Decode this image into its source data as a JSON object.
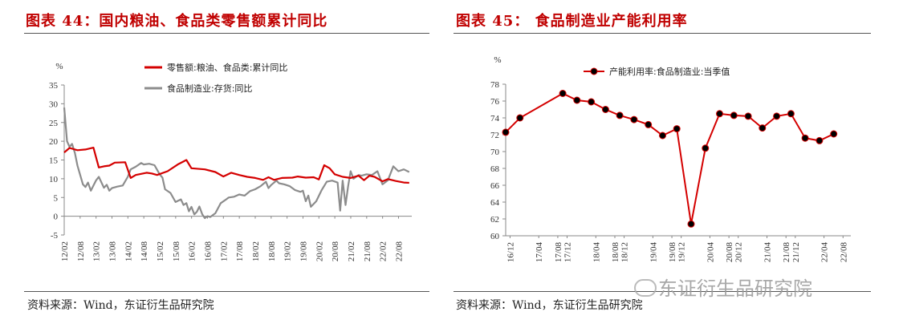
{
  "panel_left": {
    "title": "图表 44：国内粮油、食品类零售额累计同比",
    "source": "资料来源：Wind，东证衍生品研究院"
  },
  "panel_right": {
    "title": "图表 45：  食品制造业产能利用率",
    "source": "资料来源：Wind，东证衍生品研究院"
  },
  "watermark": "东证衍生品研究院",
  "chart_data": [
    {
      "type": "line",
      "title": "国内粮油、食品类零售额累计同比",
      "ylabel": "%",
      "ylim": [
        -5,
        35
      ],
      "yticks": [
        -5,
        0,
        5,
        10,
        15,
        20,
        25,
        30,
        35
      ],
      "xlim": [
        2012.083,
        2023.0
      ],
      "xticks": [
        "12/02",
        "12/08",
        "13/02",
        "13/08",
        "14/02",
        "14/08",
        "15/02",
        "15/08",
        "16/02",
        "16/08",
        "17/02",
        "17/08",
        "18/02",
        "18/08",
        "19/02",
        "19/08",
        "20/02",
        "20/08",
        "21/02",
        "21/08",
        "22/02",
        "22/08"
      ],
      "legend_position": "top-right",
      "series": [
        {
          "name": "零售额:粮油、食品类:累计同比",
          "color": "#d40000",
          "points": [
            [
              2012.083,
              17
            ],
            [
              2012.25,
              18.2
            ],
            [
              2012.5,
              17.6
            ],
            [
              2012.75,
              17.8
            ],
            [
              2013.0,
              18.3
            ],
            [
              2013.17,
              13
            ],
            [
              2013.33,
              13.3
            ],
            [
              2013.5,
              13.5
            ],
            [
              2013.67,
              14.3
            ],
            [
              2014.0,
              14.4
            ],
            [
              2014.17,
              10.2
            ],
            [
              2014.33,
              11
            ],
            [
              2014.67,
              11.6
            ],
            [
              2014.83,
              11.4
            ],
            [
              2015.0,
              11
            ],
            [
              2015.33,
              12
            ],
            [
              2015.67,
              13.9
            ],
            [
              2015.92,
              15
            ],
            [
              2016.08,
              12.8
            ],
            [
              2016.5,
              12.5
            ],
            [
              2016.83,
              11.8
            ],
            [
              2017.08,
              10.6
            ],
            [
              2017.33,
              11.6
            ],
            [
              2017.58,
              11
            ],
            [
              2017.83,
              10.5
            ],
            [
              2018.08,
              10.2
            ],
            [
              2018.33,
              9.7
            ],
            [
              2018.5,
              10.4
            ],
            [
              2018.67,
              9.7
            ],
            [
              2018.92,
              10.2
            ],
            [
              2019.25,
              10.3
            ],
            [
              2019.42,
              10.6
            ],
            [
              2019.67,
              10.3
            ],
            [
              2019.92,
              10.4
            ],
            [
              2020.08,
              9.8
            ],
            [
              2020.25,
              13.6
            ],
            [
              2020.42,
              12.8
            ],
            [
              2020.58,
              11.2
            ],
            [
              2020.83,
              10.5
            ],
            [
              2021.08,
              10.2
            ],
            [
              2021.33,
              10.8
            ],
            [
              2021.5,
              9.6
            ],
            [
              2021.67,
              10.8
            ],
            [
              2021.83,
              10.5
            ],
            [
              2022.08,
              9.3
            ],
            [
              2022.25,
              9.9
            ],
            [
              2022.5,
              9.4
            ],
            [
              2022.75,
              9.0
            ],
            [
              2022.92,
              8.9
            ]
          ]
        },
        {
          "name": "食品制造业:存货:同比",
          "color": "#8c8c8c",
          "points": [
            [
              2012.083,
              29
            ],
            [
              2012.17,
              20
            ],
            [
              2012.25,
              18.5
            ],
            [
              2012.33,
              19.3
            ],
            [
              2012.42,
              16.8
            ],
            [
              2012.5,
              13.5
            ],
            [
              2012.67,
              8.5
            ],
            [
              2012.75,
              7.8
            ],
            [
              2012.83,
              9
            ],
            [
              2012.92,
              6.8
            ],
            [
              2013.08,
              9.5
            ],
            [
              2013.17,
              10.5
            ],
            [
              2013.33,
              7.6
            ],
            [
              2013.42,
              8.4
            ],
            [
              2013.5,
              6.8
            ],
            [
              2013.58,
              7.5
            ],
            [
              2013.75,
              7.9
            ],
            [
              2013.92,
              8.2
            ],
            [
              2014.08,
              10.5
            ],
            [
              2014.17,
              12.5
            ],
            [
              2014.33,
              13.2
            ],
            [
              2014.5,
              14.2
            ],
            [
              2014.58,
              13.8
            ],
            [
              2014.75,
              14
            ],
            [
              2014.92,
              13.6
            ],
            [
              2015.08,
              11.2
            ],
            [
              2015.17,
              10.3
            ],
            [
              2015.25,
              7.2
            ],
            [
              2015.42,
              6.2
            ],
            [
              2015.58,
              3.8
            ],
            [
              2015.75,
              4.5
            ],
            [
              2015.83,
              3
            ],
            [
              2015.92,
              3.5
            ],
            [
              2016.0,
              1.3
            ],
            [
              2016.08,
              2.5
            ],
            [
              2016.17,
              0.5
            ],
            [
              2016.25,
              1.2
            ],
            [
              2016.33,
              2.6
            ],
            [
              2016.42,
              0.5
            ],
            [
              2016.5,
              -0.5
            ],
            [
              2016.58,
              0
            ],
            [
              2016.67,
              -0.2
            ],
            [
              2016.83,
              0.8
            ],
            [
              2017.0,
              3.5
            ],
            [
              2017.17,
              4.5
            ],
            [
              2017.25,
              5
            ],
            [
              2017.42,
              5.2
            ],
            [
              2017.58,
              5.8
            ],
            [
              2017.75,
              5.5
            ],
            [
              2017.92,
              6.7
            ],
            [
              2018.08,
              7.2
            ],
            [
              2018.25,
              8
            ],
            [
              2018.42,
              9.2
            ],
            [
              2018.5,
              7.5
            ],
            [
              2018.58,
              8.3
            ],
            [
              2018.75,
              9.5
            ],
            [
              2018.83,
              8.8
            ],
            [
              2019.0,
              8.5
            ],
            [
              2019.17,
              8
            ],
            [
              2019.33,
              7
            ],
            [
              2019.5,
              6.5
            ],
            [
              2019.58,
              6.8
            ],
            [
              2019.67,
              4
            ],
            [
              2019.75,
              5.5
            ],
            [
              2019.83,
              2.5
            ],
            [
              2020.0,
              4
            ],
            [
              2020.17,
              7
            ],
            [
              2020.33,
              9.2
            ],
            [
              2020.5,
              9.5
            ],
            [
              2020.67,
              9
            ],
            [
              2020.75,
              1.5
            ],
            [
              2020.83,
              9.5
            ],
            [
              2020.92,
              3
            ],
            [
              2021.0,
              8
            ],
            [
              2021.08,
              12
            ],
            [
              2021.17,
              10
            ],
            [
              2021.33,
              11
            ],
            [
              2021.42,
              10.8
            ],
            [
              2021.58,
              11.2
            ],
            [
              2021.75,
              11
            ],
            [
              2021.92,
              12
            ],
            [
              2022.08,
              8.5
            ],
            [
              2022.25,
              9.6
            ],
            [
              2022.42,
              13.3
            ],
            [
              2022.58,
              12
            ],
            [
              2022.75,
              12.5
            ],
            [
              2022.92,
              11.8
            ]
          ]
        }
      ]
    },
    {
      "type": "line",
      "title": "食品制造业产能利用率",
      "ylabel": "%",
      "ylim": [
        60,
        78
      ],
      "yticks": [
        60,
        62,
        64,
        66,
        68,
        70,
        72,
        74,
        76,
        78
      ],
      "categories": [
        "16/12",
        "17/04",
        "17/08",
        "17/12",
        "18/04",
        "18/08",
        "18/12",
        "19/04",
        "19/08",
        "19/12",
        "20/04",
        "20/08",
        "20/12",
        "21/04",
        "21/08",
        "21/12",
        "22/04",
        "22/08"
      ],
      "legend_position": "top-center",
      "series": [
        {
          "name": "产能利用率:食品制造业:当季值",
          "color": "#d40000",
          "points": [
            [
              "2016Q4",
              72.3
            ],
            [
              "2017Q1",
              74
            ],
            [
              "2017Q4",
              76.9
            ],
            [
              "2018Q1",
              76.1
            ],
            [
              "2018Q2",
              75.9
            ],
            [
              "2018Q3",
              75
            ],
            [
              "2018Q4",
              74.3
            ],
            [
              "2019Q1",
              73.8
            ],
            [
              "2019Q2",
              73.2
            ],
            [
              "2019Q3",
              71.9
            ],
            [
              "2019Q4",
              72.7
            ],
            [
              "2020Q1",
              61.4
            ],
            [
              "2020Q2",
              70.4
            ],
            [
              "2020Q3",
              74.5
            ],
            [
              "2020Q4",
              74.3
            ],
            [
              "2021Q1",
              74.2
            ],
            [
              "2021Q2",
              72.8
            ],
            [
              "2021Q3",
              74.2
            ],
            [
              "2021Q4",
              74.5
            ],
            [
              "2022Q1",
              71.6
            ],
            [
              "2022Q2",
              71.3
            ],
            [
              "2022Q3",
              72.1
            ]
          ]
        }
      ]
    }
  ]
}
